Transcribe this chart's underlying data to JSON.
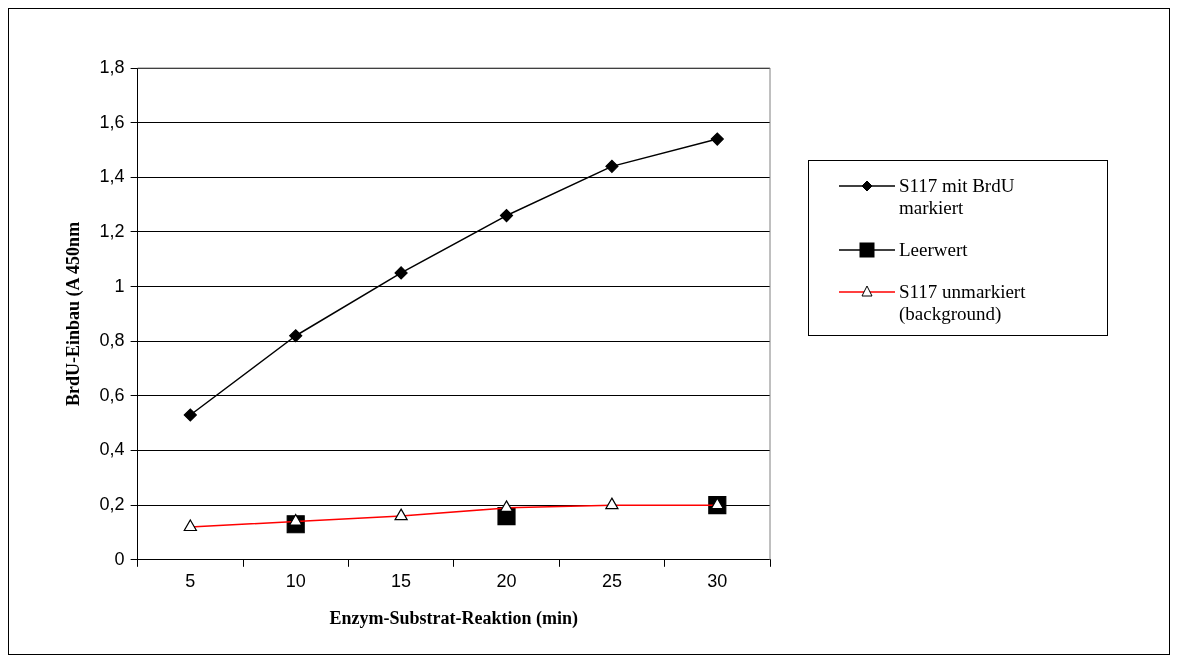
{
  "chart_data": {
    "type": "line",
    "xlabel": "Enzym-Substrat-Reaktion (min)",
    "ylabel": "BrdU-Einbau (A 450nm",
    "categories": [
      "5",
      "10",
      "15",
      "20",
      "25",
      "30"
    ],
    "series": [
      {
        "name": "S117 mit BrdU markiert",
        "color": "#000000",
        "marker": "diamond",
        "values": [
          0.53,
          0.82,
          1.05,
          1.26,
          1.44,
          1.54
        ]
      },
      {
        "name": "Leerwert",
        "color": "#000000",
        "marker": "square",
        "values": [
          null,
          0.13,
          null,
          0.16,
          null,
          0.2
        ]
      },
      {
        "name": "S117 unmarkiert (background)",
        "color": "#ff0000",
        "marker": "triangle",
        "values": [
          0.12,
          0.14,
          0.16,
          0.19,
          0.2,
          0.2
        ]
      }
    ],
    "ylim": [
      0,
      1.8
    ],
    "yticks": [
      0,
      {
        "value": 0.2,
        "label": "0,2"
      },
      {
        "value": 0.4,
        "label": "0,4"
      },
      {
        "value": 0.6,
        "label": "0,6"
      },
      {
        "value": 0.8,
        "label": "0,8"
      },
      1,
      {
        "value": 1.2,
        "label": "1,2"
      },
      {
        "value": 1.4,
        "label": "1,4"
      },
      {
        "value": 1.6,
        "label": "1,6"
      },
      {
        "value": 1.8,
        "label": "1,8"
      }
    ],
    "grid": "y",
    "legend": "right",
    "line_style": "solid"
  }
}
